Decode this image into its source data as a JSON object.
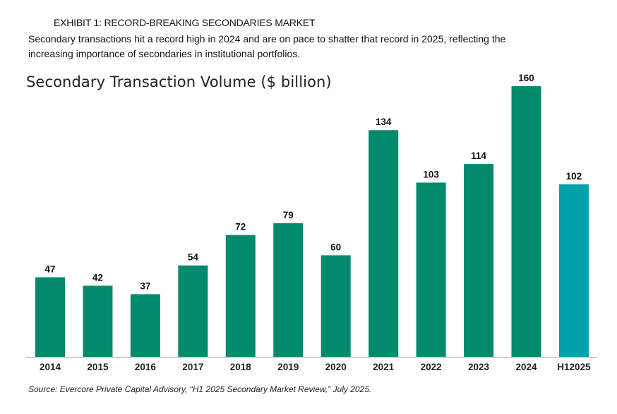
{
  "header": {
    "exhibit_label": "EXHIBIT 1: RECORD-BREAKING SECONDARIES MARKET",
    "subtitle": "Secondary transactions hit a record high in 2024 and are on pace to shatter that record in 2025, reflecting the increasing importance of secondaries in institutional portfolios."
  },
  "footer": {
    "source": "Source: Evercore Private Capital Advisory, “H1 2025 Secondary Market Review,” July 2025."
  },
  "colors": {
    "bar": "#038a6c",
    "bar_highlight": "#00a1a8",
    "axis": "#9a9a9a"
  },
  "chart_data": {
    "type": "bar",
    "title": "Secondary Transaction Volume ($ billion)",
    "xlabel": "",
    "ylabel": "",
    "categories": [
      "2014",
      "2015",
      "2016",
      "2017",
      "2018",
      "2019",
      "2020",
      "2021",
      "2022",
      "2023",
      "2024",
      "H12025"
    ],
    "values": [
      47,
      42,
      37,
      54,
      72,
      79,
      60,
      134,
      103,
      114,
      160,
      102
    ],
    "highlight_index": 11,
    "ylim": [
      0,
      160
    ],
    "grid": false,
    "data_labels": true
  }
}
